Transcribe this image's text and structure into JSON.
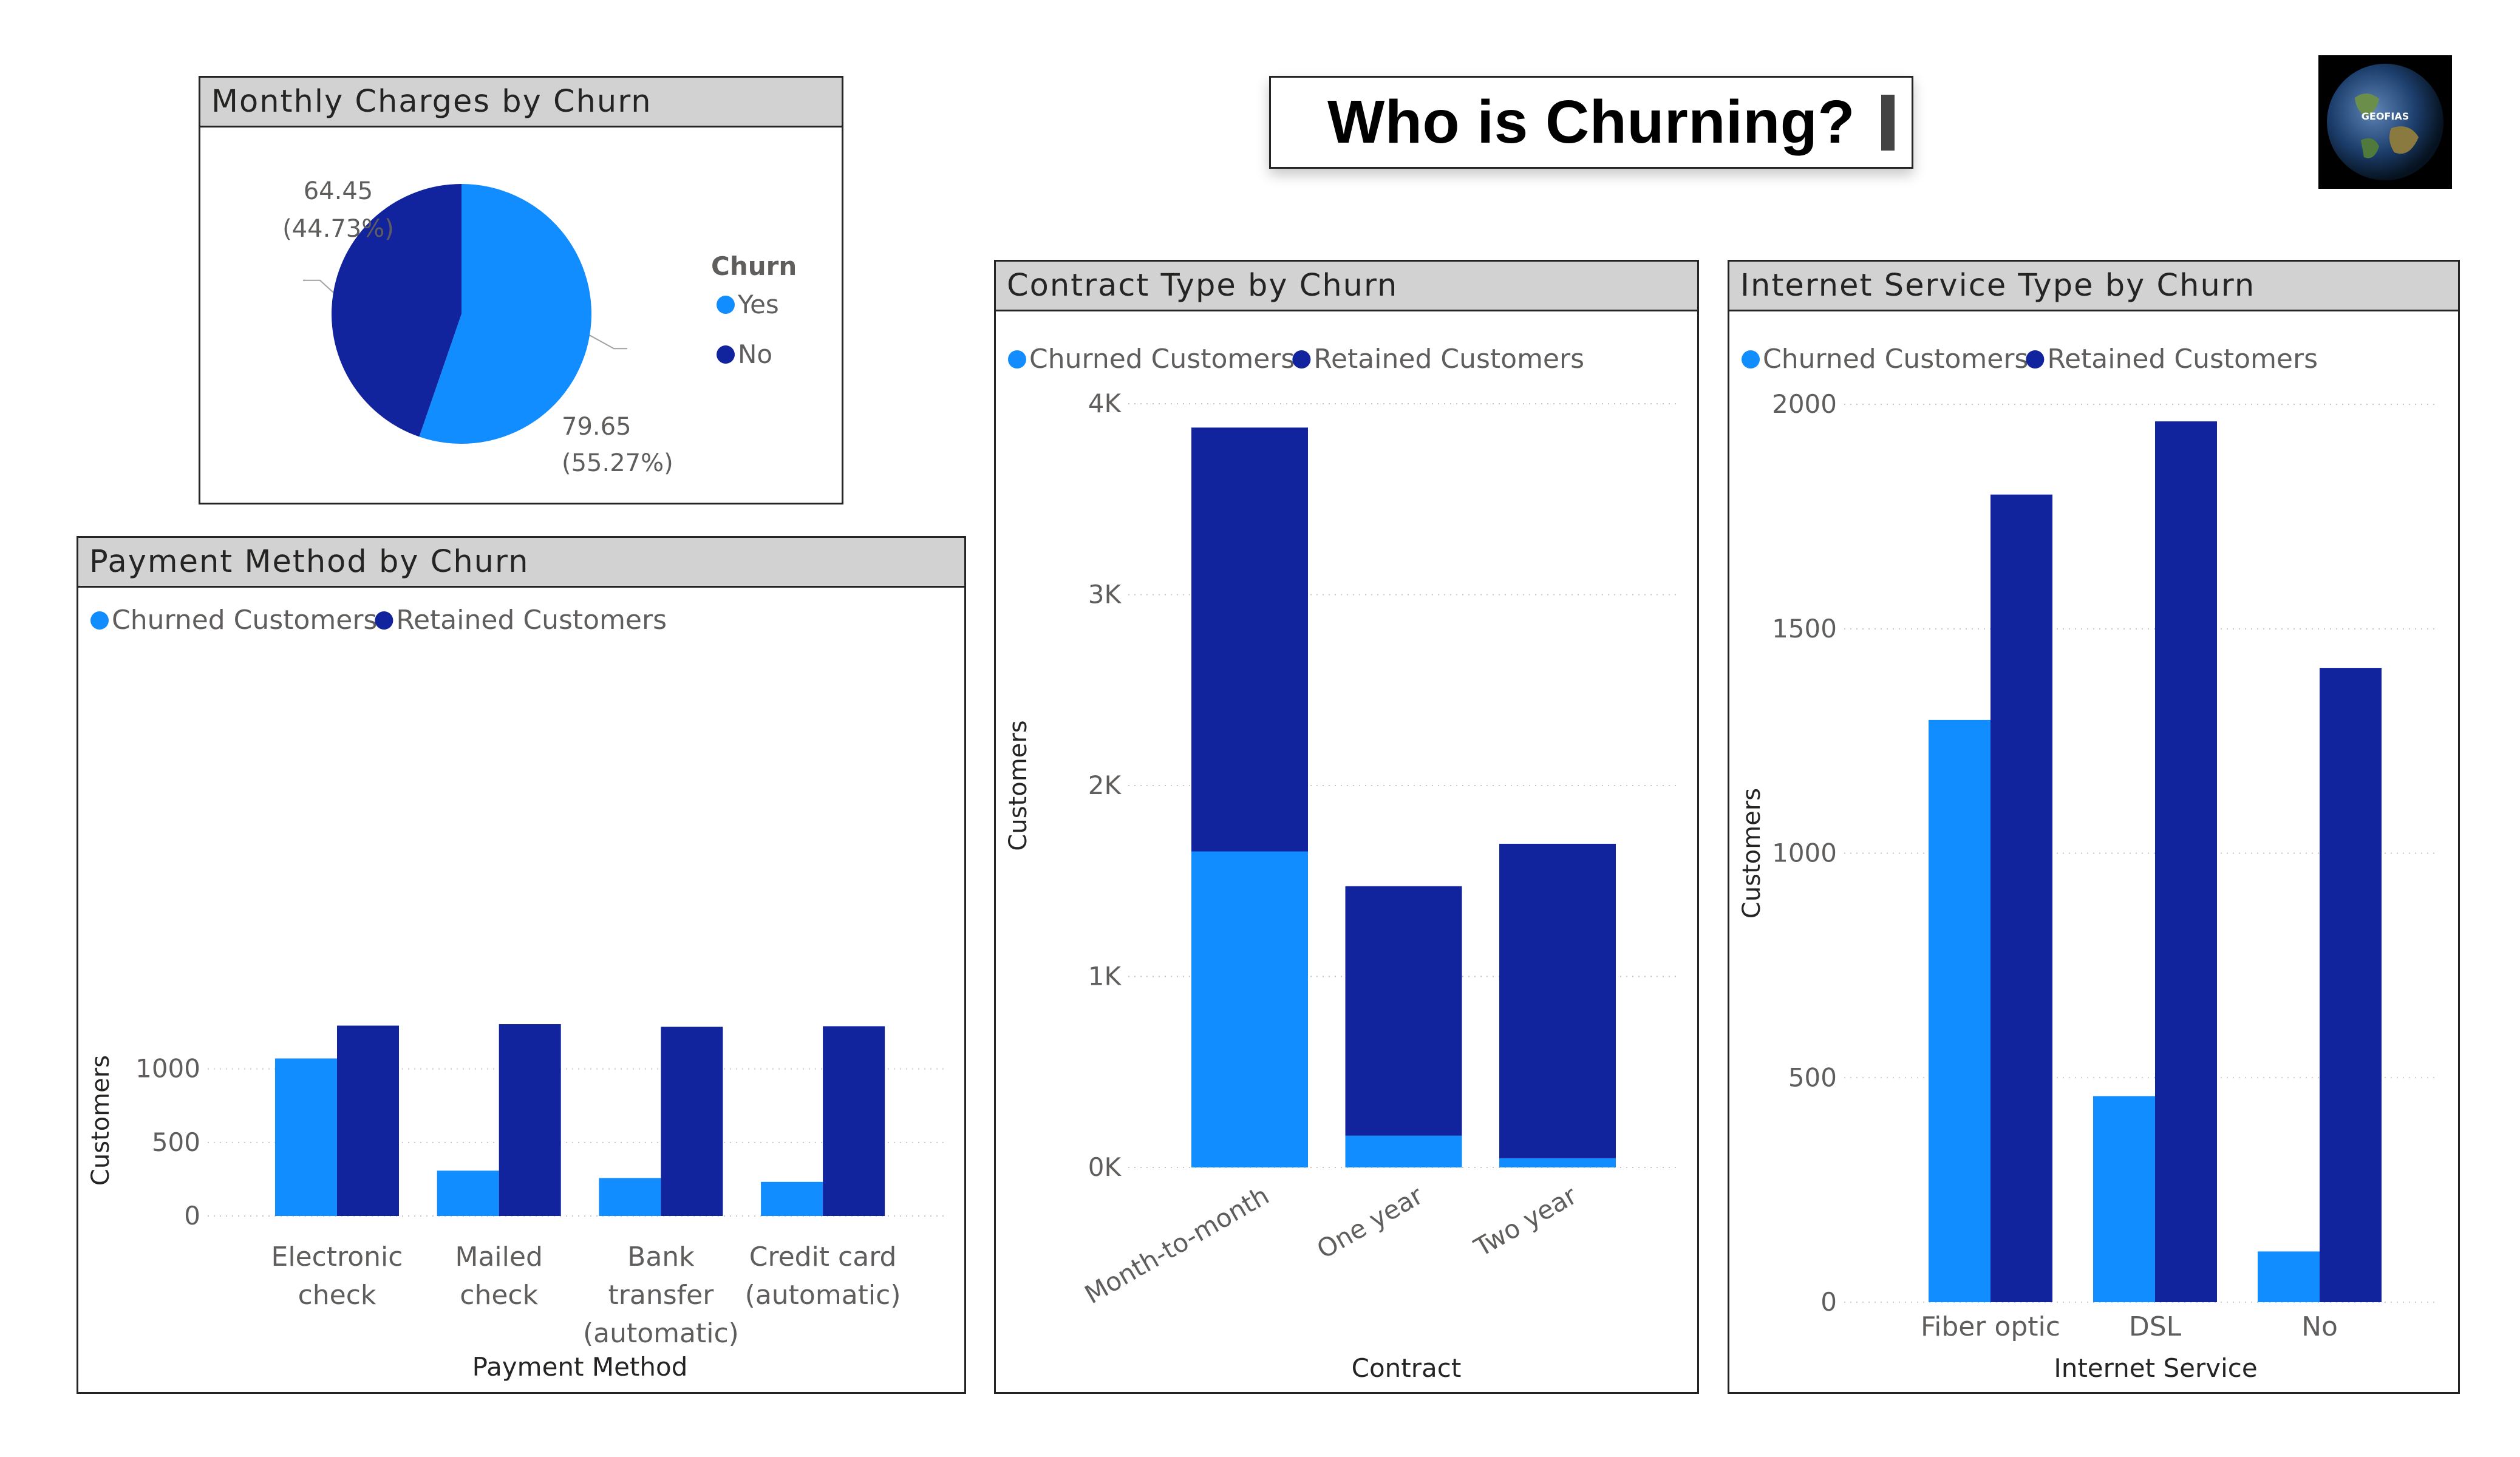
{
  "page": {
    "title": "Who is Churning?",
    "logo_text": "GEOFIAS"
  },
  "colors": {
    "churned": "#118dff",
    "retained": "#12239e",
    "header_bg": "#d2d2d2",
    "text": "#252423",
    "axis_text": "#605e5c"
  },
  "chart_data": [
    {
      "id": "monthly-charges",
      "type": "pie",
      "title": "Monthly Charges by Churn",
      "legend_title": "Churn",
      "legend_position": "right",
      "slices": [
        {
          "label": "Yes",
          "value": 79.65,
          "value_label": "79.65",
          "percent_label": "(55.27%)",
          "color": "#118dff"
        },
        {
          "label": "No",
          "value": 64.45,
          "value_label": "64.45",
          "percent_label": "(44.73%)",
          "color": "#12239e"
        }
      ]
    },
    {
      "id": "payment-method",
      "type": "bar",
      "title": "Payment Method by Churn",
      "legend_position": "top-left",
      "xlabel": "Payment Method",
      "ylabel": "Customers",
      "ylim": [
        0,
        1300
      ],
      "yticks": [
        0,
        500,
        1000
      ],
      "ytick_labels": [
        "0",
        "500",
        "1000"
      ],
      "categories": [
        "Electronic check",
        "Mailed check",
        "Bank transfer (automatic)",
        "Credit card (automatic)"
      ],
      "category_lines": [
        [
          "Electronic",
          "check"
        ],
        [
          "Mailed",
          "check"
        ],
        [
          "Bank",
          "transfer",
          "(automatic)"
        ],
        [
          "Credit card",
          "(automatic)"
        ]
      ],
      "series": [
        {
          "name": "Churned Customers",
          "values": [
            1071,
            308,
            258,
            232
          ]
        },
        {
          "name": "Retained Customers",
          "values": [
            1294,
            1304,
            1286,
            1290
          ]
        }
      ]
    },
    {
      "id": "contract-type",
      "type": "bar",
      "stacked": true,
      "title": "Contract Type by Churn",
      "legend_position": "top-left",
      "xlabel": "Contract",
      "ylabel": "Customers",
      "ylim": [
        0,
        4000
      ],
      "yticks": [
        0,
        1000,
        2000,
        3000,
        4000
      ],
      "ytick_labels": [
        "0K",
        "1K",
        "2K",
        "3K",
        "4K"
      ],
      "categories": [
        "Month-to-month",
        "One year",
        "Two year"
      ],
      "series": [
        {
          "name": "Churned Customers",
          "values": [
            1655,
            166,
            48
          ]
        },
        {
          "name": "Retained Customers",
          "values": [
            2220,
            1307,
            1647
          ]
        }
      ]
    },
    {
      "id": "internet-service",
      "type": "bar",
      "title": "Internet Service Type by Churn",
      "legend_position": "top-left",
      "xlabel": "Internet Service",
      "ylabel": "Customers",
      "ylim": [
        0,
        2000
      ],
      "yticks": [
        0,
        500,
        1000,
        1500,
        2000
      ],
      "ytick_labels": [
        "0",
        "500",
        "1000",
        "1500",
        "2000"
      ],
      "categories": [
        "Fiber optic",
        "DSL",
        "No"
      ],
      "series": [
        {
          "name": "Churned Customers",
          "values": [
            1297,
            459,
            113
          ]
        },
        {
          "name": "Retained Customers",
          "values": [
            1799,
            1962,
            1413
          ]
        }
      ]
    }
  ]
}
